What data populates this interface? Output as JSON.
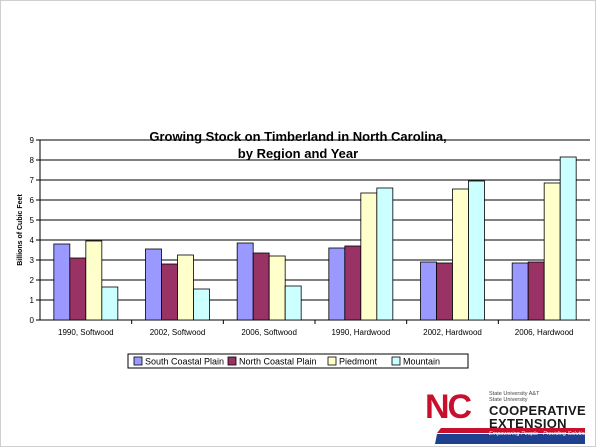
{
  "chart_data": {
    "type": "bar",
    "title_line1": "Growing Stock on Timberland in North Carolina,",
    "title_line2": "by Region and Year",
    "xlabel": "",
    "ylabel": "Billions of Cubic Feet",
    "ylim": [
      0,
      9
    ],
    "yticks": [
      0,
      1,
      2,
      3,
      4,
      5,
      6,
      7,
      8,
      9
    ],
    "grid": true,
    "legend_position": "bottom",
    "categories": [
      "1990, Softwood",
      "2002, Softwood",
      "2006, Softwood",
      "1990, Hardwood",
      "2002, Hardwood",
      "2006, Hardwood"
    ],
    "series": [
      {
        "name": "South Coastal Plain",
        "color": "#9999ff",
        "values": [
          3.8,
          3.55,
          3.85,
          3.6,
          2.9,
          2.85
        ]
      },
      {
        "name": "North Coastal Plain",
        "color": "#993366",
        "values": [
          3.1,
          2.8,
          3.35,
          3.7,
          2.85,
          2.9
        ]
      },
      {
        "name": "Piedmont",
        "color": "#ffffcc",
        "values": [
          3.95,
          3.25,
          3.2,
          6.35,
          6.55,
          6.85
        ]
      },
      {
        "name": "Mountain",
        "color": "#ccffff",
        "values": [
          1.65,
          1.55,
          1.7,
          6.6,
          6.95,
          8.15
        ]
      }
    ]
  },
  "logo": {
    "mark": "NC",
    "university_text": "State University A&T State University",
    "line1": "COOPERATIVE",
    "line2": "EXTENSION",
    "tagline": "Empowering People · Providing Solutions",
    "colors": {
      "red": "#c8102e",
      "blue": "#1f3f8f"
    }
  }
}
